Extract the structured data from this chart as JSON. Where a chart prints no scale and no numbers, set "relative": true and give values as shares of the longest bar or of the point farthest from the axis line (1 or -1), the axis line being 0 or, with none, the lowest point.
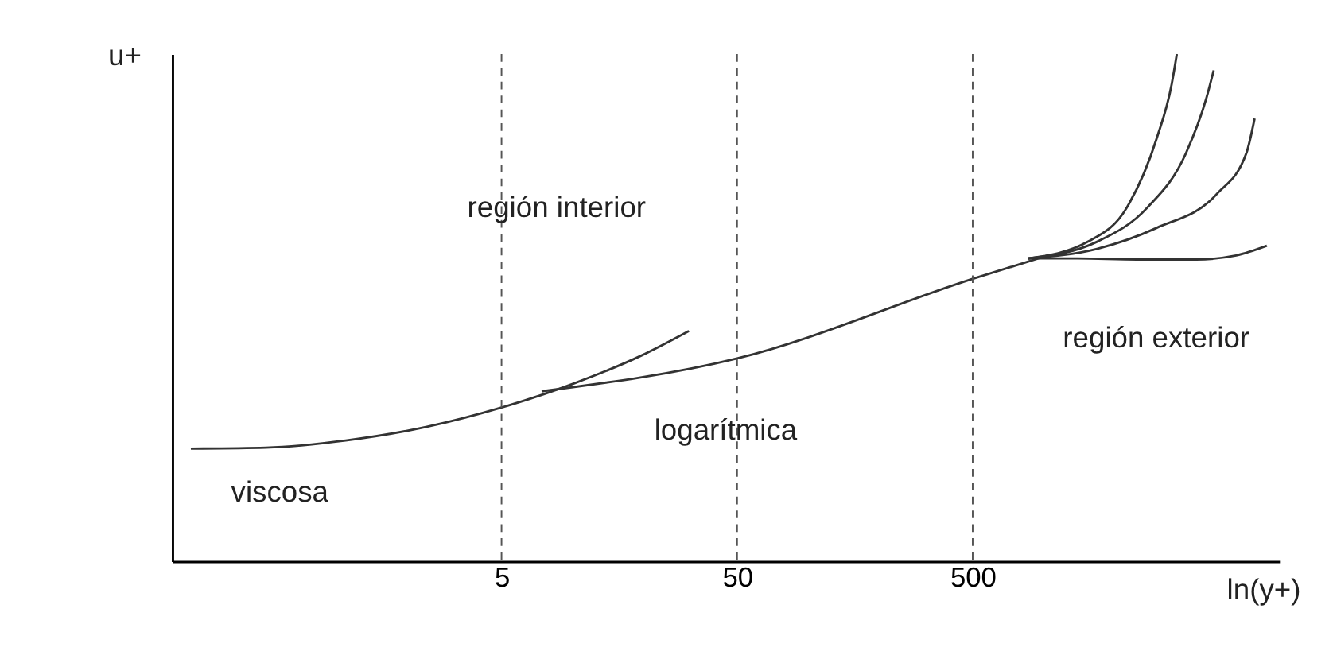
{
  "chart_data": {
    "type": "line",
    "relative": true,
    "xlabel": "ln(y+)",
    "ylabel": "u+",
    "log": "x",
    "xlim": [
      0.2,
      10000
    ],
    "xticks": [
      5,
      50,
      500
    ],
    "tick_labels": "x",
    "grid": false,
    "marker": "none",
    "line_style": "solid",
    "series": [
      {
        "color": "#333333",
        "x": [
          0.24,
          0.5,
          1.09,
          2.41,
          5.0,
          10.2,
          19.5,
          31.2
        ],
        "values": [
          0.222,
          0.224,
          0.238,
          0.265,
          0.303,
          0.351,
          0.405,
          0.454
        ]
      },
      {
        "color": "#333333",
        "x": [
          7.4,
          50,
          502,
          1043
        ],
        "values": [
          0.335,
          0.4,
          0.557,
          0.603
        ]
      },
      {
        "color": "#333333",
        "x": [
          860,
          1394,
          2490,
          4447,
          6568,
          8866
        ],
        "values": [
          0.597,
          0.597,
          0.595,
          0.595,
          0.603,
          0.622
        ]
      },
      {
        "color": "#333333",
        "x": [
          860,
          1686,
          3011,
          5432,
          7259,
          7863
        ],
        "values": [
          0.597,
          0.616,
          0.657,
          0.724,
          0.805,
          0.873
        ]
      },
      {
        "color": "#333333",
        "x": [
          860,
          1686,
          2752,
          4024,
          4915,
          5272
        ],
        "values": [
          0.597,
          0.63,
          0.697,
          0.805,
          0.914,
          0.968
        ]
      },
      {
        "color": "#333333",
        "x": [
          860,
          1541,
          2253,
          3011,
          3498,
          3678
        ],
        "values": [
          0.597,
          0.63,
          0.697,
          0.832,
          0.941,
          1.0
        ]
      }
    ],
    "ref_lines": [
      {
        "axis": "x",
        "value": 5,
        "line_style": "dashed"
      },
      {
        "axis": "x",
        "value": 50,
        "line_style": "dashed"
      },
      {
        "axis": "x",
        "value": 500,
        "line_style": "dashed"
      }
    ],
    "annotations": [
      "región interior",
      "logarítmica",
      "región exterior",
      "viscosa"
    ]
  }
}
